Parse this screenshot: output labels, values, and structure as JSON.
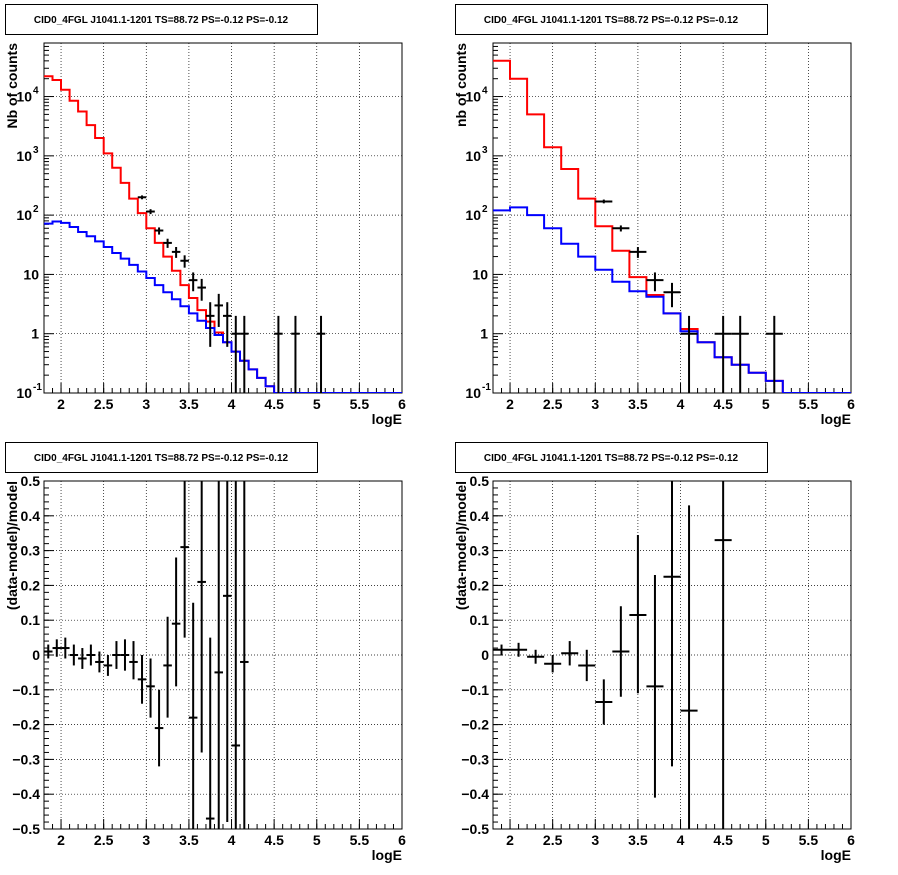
{
  "colors": {
    "data": "#000000",
    "total_model": "#ff0000",
    "source_model": "#0000ff"
  },
  "panels": [
    {
      "title": "CID0_4FGL J1041.1-1201 TS=88.72 PS=-0.12 PS=-0.12",
      "chart_data": {
        "type": "line",
        "xlabel": "logE",
        "ylabel": "Nb of counts",
        "xlim": [
          1.8,
          6.0
        ],
        "ylim": [
          0.1,
          80000
        ],
        "log_y": true,
        "grid": true,
        "x_ticks": [
          "2",
          "2.5",
          "3",
          "3.5",
          "4",
          "4.5",
          "5",
          "5.5",
          "6"
        ],
        "y_ticks": [
          {
            "label": "10",
            "sup": "-1"
          },
          {
            "label": "1"
          },
          {
            "label": "10"
          },
          {
            "label": "10",
            "sup": "2"
          },
          {
            "label": "10",
            "sup": "3"
          },
          {
            "label": "10",
            "sup": "4"
          }
        ],
        "bin_edges": [
          1.8,
          1.9,
          2.0,
          2.1,
          2.2,
          2.3,
          2.4,
          2.5,
          2.6,
          2.7,
          2.8,
          2.9,
          3.0,
          3.1,
          3.2,
          3.3,
          3.4,
          3.5,
          3.6,
          3.7,
          3.8,
          3.9,
          4.0,
          4.1,
          4.2,
          4.3,
          4.4,
          4.5,
          4.6,
          4.7,
          4.8,
          4.9,
          5.0,
          5.1,
          5.2,
          5.3,
          5.4,
          5.5,
          5.6,
          5.7,
          5.8,
          5.9,
          6.0
        ],
        "series": [
          {
            "key": "total",
            "kind": "step",
            "values": [
              22000,
              19000,
              13000,
              8500,
              5600,
              3300,
              2000,
              1100,
              630,
              350,
              190,
              108,
              60,
              34,
              20,
              11.5,
              6.6,
              4.0,
              2.5,
              1.6,
              1.05,
              0.72,
              0.5,
              0.35,
              0.25,
              0.18,
              0.13,
              0.1,
              0.1,
              0.1,
              0.1,
              0.1,
              0.1,
              0.1,
              0.1,
              0.1,
              0.1,
              0.1,
              0.1,
              0.1,
              0.1,
              0.1
            ]
          },
          {
            "key": "source",
            "kind": "step",
            "values": [
              72,
              78,
              74,
              63,
              52,
              44,
              36,
              29,
              23,
              18.5,
              14.5,
              11.2,
              8.7,
              6.6,
              5.0,
              3.8,
              2.9,
              2.2,
              1.65,
              1.25,
              0.95,
              0.72,
              0.5,
              0.35,
              0.25,
              0.18,
              0.13,
              0.1,
              0.1,
              0.1,
              0.1,
              0.1,
              0.1,
              0.1,
              0.1,
              0.1,
              0.1,
              0.1,
              0.1,
              0.1,
              0.1,
              0.1
            ]
          },
          {
            "key": "data",
            "kind": "points",
            "points": [
              {
                "x": 2.95,
                "y": 200,
                "xerr": 0.05,
                "lo": 185,
                "hi": 215
              },
              {
                "x": 3.05,
                "y": 115,
                "xerr": 0.05,
                "lo": 104,
                "hi": 126
              },
              {
                "x": 3.15,
                "y": 55,
                "xerr": 0.05,
                "lo": 47,
                "hi": 62
              },
              {
                "x": 3.25,
                "y": 34,
                "xerr": 0.05,
                "lo": 28,
                "hi": 40
              },
              {
                "x": 3.35,
                "y": 24,
                "xerr": 0.05,
                "lo": 19,
                "hi": 29
              },
              {
                "x": 3.45,
                "y": 17,
                "xerr": 0.05,
                "lo": 13,
                "hi": 21
              },
              {
                "x": 3.55,
                "y": 8,
                "xerr": 0.05,
                "lo": 5.2,
                "hi": 10.8
              },
              {
                "x": 3.65,
                "y": 6,
                "xerr": 0.05,
                "lo": 3.6,
                "hi": 8.4
              },
              {
                "x": 3.75,
                "y": 2,
                "xerr": 0.05,
                "lo": 0.6,
                "hi": 3.4
              },
              {
                "x": 3.85,
                "y": 3,
                "xerr": 0.05,
                "lo": 1.3,
                "hi": 4.7
              },
              {
                "x": 3.95,
                "y": 2,
                "xerr": 0.05,
                "lo": 0.6,
                "hi": 3.4
              },
              {
                "x": 4.05,
                "y": 1,
                "xerr": 0.05,
                "lo": 0.1,
                "hi": 2.0
              },
              {
                "x": 4.15,
                "y": 1,
                "xerr": 0.05,
                "lo": 0.1,
                "hi": 2.0
              },
              {
                "x": 4.55,
                "y": 1,
                "xerr": 0.05,
                "lo": 0.1,
                "hi": 2.0
              },
              {
                "x": 4.75,
                "y": 1,
                "xerr": 0.05,
                "lo": 0.1,
                "hi": 2.0
              },
              {
                "x": 5.05,
                "y": 1,
                "xerr": 0.05,
                "lo": 0.1,
                "hi": 2.0
              }
            ]
          }
        ]
      }
    },
    {
      "title": "CID0_4FGL J1041.1-1201 TS=88.72 PS=-0.12 PS=-0.12",
      "chart_data": {
        "type": "line",
        "xlabel": "logE",
        "ylabel": "nb of counts",
        "xlim": [
          1.8,
          6.0
        ],
        "ylim": [
          0.1,
          80000
        ],
        "log_y": true,
        "grid": true,
        "x_ticks": [
          "2",
          "2.5",
          "3",
          "3.5",
          "4",
          "4.5",
          "5",
          "5.5",
          "6"
        ],
        "y_ticks": [
          {
            "label": "10",
            "sup": "-1"
          },
          {
            "label": "1"
          },
          {
            "label": "10"
          },
          {
            "label": "10",
            "sup": "2"
          },
          {
            "label": "10",
            "sup": "3"
          },
          {
            "label": "10",
            "sup": "4"
          }
        ],
        "bin_edges": [
          1.8,
          2.0,
          2.2,
          2.4,
          2.6,
          2.8,
          3.0,
          3.2,
          3.4,
          3.6,
          3.8,
          4.0,
          4.2,
          4.4,
          4.6,
          4.8,
          5.0,
          5.2,
          5.4,
          5.6,
          5.8,
          6.0
        ],
        "series": [
          {
            "key": "total",
            "kind": "step",
            "values": [
              40000,
              20000,
              5000,
              1400,
              600,
              190,
              65,
              25,
              9,
              4.5,
              2.2,
              1.2,
              0.72,
              0.4,
              0.3,
              0.22,
              0.16,
              0.1,
              0.1,
              0.1,
              0.1
            ]
          },
          {
            "key": "source",
            "kind": "step",
            "values": [
              120,
              135,
              100,
              60,
              33,
              20,
              12,
              7.5,
              5.2,
              4.2,
              2.2,
              1.1,
              0.72,
              0.4,
              0.3,
              0.22,
              0.16,
              0.1,
              0.1,
              0.1,
              0.1
            ]
          },
          {
            "key": "data",
            "kind": "points",
            "points": [
              {
                "x": 3.1,
                "y": 170,
                "xerr": 0.1,
                "lo": 158,
                "hi": 183
              },
              {
                "x": 3.3,
                "y": 60,
                "xerr": 0.1,
                "lo": 53,
                "hi": 67
              },
              {
                "x": 3.5,
                "y": 24,
                "xerr": 0.1,
                "lo": 19,
                "hi": 29
              },
              {
                "x": 3.7,
                "y": 8,
                "xerr": 0.1,
                "lo": 5.2,
                "hi": 10.8
              },
              {
                "x": 3.9,
                "y": 5,
                "xerr": 0.1,
                "lo": 2.8,
                "hi": 7.2
              },
              {
                "x": 4.1,
                "y": 1,
                "xerr": 0.1,
                "lo": 0.1,
                "hi": 2.0
              },
              {
                "x": 4.5,
                "y": 1,
                "xerr": 0.1,
                "lo": 0.1,
                "hi": 2.0
              },
              {
                "x": 4.7,
                "y": 1,
                "xerr": 0.1,
                "lo": 0.1,
                "hi": 2.0
              },
              {
                "x": 5.1,
                "y": 1,
                "xerr": 0.1,
                "lo": 0.1,
                "hi": 2.0
              }
            ]
          }
        ]
      }
    },
    {
      "title": "CID0_4FGL J1041.1-1201 TS=88.72 PS=-0.12 PS=-0.12",
      "chart_data": {
        "type": "scatter",
        "xlabel": "logE",
        "ylabel": "(data-model)/model",
        "xlim": [
          1.8,
          6.0
        ],
        "ylim": [
          -0.5,
          0.5
        ],
        "log_y": false,
        "grid": true,
        "x_ticks": [
          "2",
          "2.5",
          "3",
          "3.5",
          "4",
          "4.5",
          "5",
          "5.5",
          "6"
        ],
        "y_ticks_values": [
          -0.5,
          -0.4,
          -0.3,
          -0.2,
          -0.1,
          0,
          0.1,
          0.2,
          0.3,
          0.4,
          0.5
        ],
        "series": [
          {
            "key": "data",
            "kind": "points",
            "points": [
              {
                "x": 1.85,
                "y": 0.01,
                "xerr": 0.05,
                "lo": -0.01,
                "hi": 0.03
              },
              {
                "x": 1.95,
                "y": 0.02,
                "xerr": 0.05,
                "lo": -0.005,
                "hi": 0.045
              },
              {
                "x": 2.05,
                "y": 0.02,
                "xerr": 0.05,
                "lo": -0.01,
                "hi": 0.05
              },
              {
                "x": 2.15,
                "y": 0.0,
                "xerr": 0.05,
                "lo": -0.03,
                "hi": 0.03
              },
              {
                "x": 2.25,
                "y": -0.01,
                "xerr": 0.05,
                "lo": -0.04,
                "hi": 0.02
              },
              {
                "x": 2.35,
                "y": 0.0,
                "xerr": 0.05,
                "lo": -0.03,
                "hi": 0.03
              },
              {
                "x": 2.45,
                "y": -0.02,
                "xerr": 0.05,
                "lo": -0.05,
                "hi": 0.01
              },
              {
                "x": 2.55,
                "y": -0.03,
                "xerr": 0.05,
                "lo": -0.06,
                "hi": 0.0
              },
              {
                "x": 2.65,
                "y": 0.0,
                "xerr": 0.05,
                "lo": -0.04,
                "hi": 0.04
              },
              {
                "x": 2.75,
                "y": 0.0,
                "xerr": 0.05,
                "lo": -0.045,
                "hi": 0.045
              },
              {
                "x": 2.85,
                "y": -0.02,
                "xerr": 0.05,
                "lo": -0.07,
                "hi": 0.04
              },
              {
                "x": 2.95,
                "y": -0.07,
                "xerr": 0.05,
                "lo": -0.14,
                "hi": 0.0
              },
              {
                "x": 3.05,
                "y": -0.09,
                "xerr": 0.05,
                "lo": -0.18,
                "hi": -0.01
              },
              {
                "x": 3.15,
                "y": -0.21,
                "xerr": 0.05,
                "lo": -0.32,
                "hi": -0.1
              },
              {
                "x": 3.25,
                "y": -0.03,
                "xerr": 0.05,
                "lo": -0.18,
                "hi": 0.11
              },
              {
                "x": 3.35,
                "y": 0.09,
                "xerr": 0.05,
                "lo": -0.09,
                "hi": 0.28
              },
              {
                "x": 3.45,
                "y": 0.31,
                "xerr": 0.05,
                "lo": 0.05,
                "hi": 0.5
              },
              {
                "x": 3.55,
                "y": -0.18,
                "xerr": 0.05,
                "lo": -0.5,
                "hi": 0.15
              },
              {
                "x": 3.65,
                "y": 0.21,
                "xerr": 0.05,
                "lo": -0.28,
                "hi": 0.5
              },
              {
                "x": 3.75,
                "y": -0.47,
                "xerr": 0.05,
                "lo": -0.5,
                "hi": 0.05
              },
              {
                "x": 3.85,
                "y": -0.05,
                "xerr": 0.05,
                "lo": -0.5,
                "hi": 0.5
              },
              {
                "x": 3.95,
                "y": 0.17,
                "xerr": 0.05,
                "lo": -0.48,
                "hi": 0.5
              },
              {
                "x": 4.05,
                "y": -0.26,
                "xerr": 0.05,
                "lo": -0.5,
                "hi": 0.5
              },
              {
                "x": 4.15,
                "y": -0.02,
                "xerr": 0.05,
                "lo": -0.5,
                "hi": 0.5
              }
            ]
          }
        ]
      }
    },
    {
      "title": "CID0_4FGL J1041.1-1201 TS=88.72 PS=-0.12 PS=-0.12",
      "chart_data": {
        "type": "scatter",
        "xlabel": "logE",
        "ylabel": "(data-model)/model",
        "xlim": [
          1.8,
          6.0
        ],
        "ylim": [
          -0.5,
          0.5
        ],
        "log_y": false,
        "grid": true,
        "x_ticks": [
          "2",
          "2.5",
          "3",
          "3.5",
          "4",
          "4.5",
          "5",
          "5.5",
          "6"
        ],
        "y_ticks_values": [
          -0.5,
          -0.4,
          -0.3,
          -0.2,
          -0.1,
          0,
          0.1,
          0.2,
          0.3,
          0.4,
          0.5
        ],
        "series": [
          {
            "key": "data",
            "kind": "points",
            "points": [
              {
                "x": 1.9,
                "y": 0.015,
                "xerr": 0.1,
                "lo": 0.0,
                "hi": 0.03
              },
              {
                "x": 2.1,
                "y": 0.015,
                "xerr": 0.1,
                "lo": -0.005,
                "hi": 0.035
              },
              {
                "x": 2.3,
                "y": -0.005,
                "xerr": 0.1,
                "lo": -0.025,
                "hi": 0.015
              },
              {
                "x": 2.5,
                "y": -0.025,
                "xerr": 0.1,
                "lo": -0.05,
                "hi": 0.0
              },
              {
                "x": 2.7,
                "y": 0.005,
                "xerr": 0.1,
                "lo": -0.03,
                "hi": 0.04
              },
              {
                "x": 2.9,
                "y": -0.03,
                "xerr": 0.1,
                "lo": -0.075,
                "hi": 0.015
              },
              {
                "x": 3.1,
                "y": -0.135,
                "xerr": 0.1,
                "lo": -0.2,
                "hi": -0.07
              },
              {
                "x": 3.3,
                "y": 0.01,
                "xerr": 0.1,
                "lo": -0.12,
                "hi": 0.14
              },
              {
                "x": 3.5,
                "y": 0.115,
                "xerr": 0.1,
                "lo": -0.11,
                "hi": 0.345
              },
              {
                "x": 3.7,
                "y": -0.09,
                "xerr": 0.1,
                "lo": -0.41,
                "hi": 0.23
              },
              {
                "x": 3.9,
                "y": 0.225,
                "xerr": 0.1,
                "lo": -0.32,
                "hi": 0.5
              },
              {
                "x": 4.1,
                "y": -0.16,
                "xerr": 0.1,
                "lo": -0.5,
                "hi": 0.43
              },
              {
                "x": 4.5,
                "y": 0.33,
                "xerr": 0.1,
                "lo": -0.5,
                "hi": 0.5
              }
            ]
          }
        ]
      }
    }
  ]
}
